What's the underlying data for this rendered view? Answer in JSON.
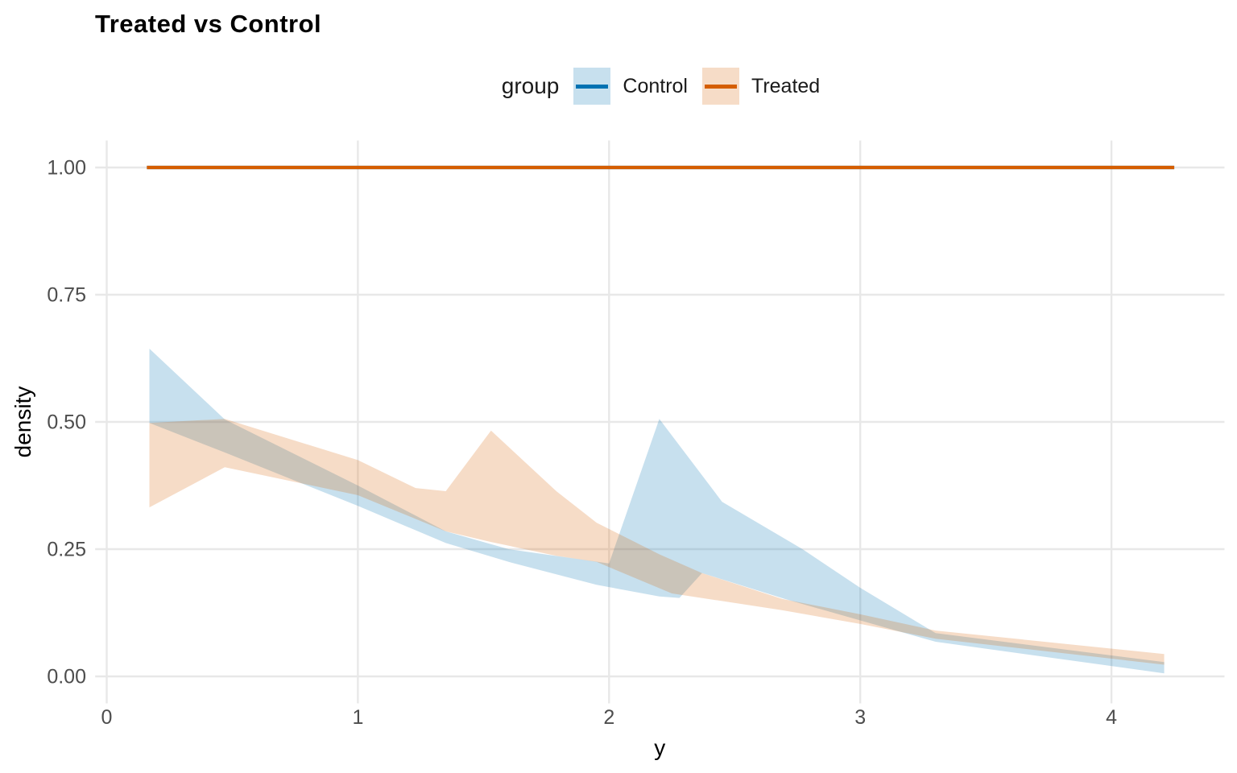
{
  "chart_data": {
    "type": "area",
    "title": "Treated vs Control",
    "xlabel": "y",
    "ylabel": "density",
    "grid": "major-only",
    "panel_background": "#FFFFFF",
    "gridline_color": "#E8E8E8",
    "tick_label_color": "#4D4D4D",
    "legend": {
      "title": "group",
      "position": "top-center"
    },
    "x_ticks": [
      {
        "label": "0",
        "v": 0
      },
      {
        "label": "1",
        "v": 1
      },
      {
        "label": "2",
        "v": 2
      },
      {
        "label": "3",
        "v": 3
      },
      {
        "label": "4",
        "v": 4
      }
    ],
    "y_ticks": [
      {
        "label": "0.00",
        "v": 0
      },
      {
        "label": "0.25",
        "v": 0.25
      },
      {
        "label": "0.50",
        "v": 0.5
      },
      {
        "label": "0.75",
        "v": 0.75
      },
      {
        "label": "1.00",
        "v": 1
      }
    ],
    "xlim": [
      -0.046,
      4.45
    ],
    "ylim": [
      -0.053,
      1.053
    ],
    "series": [
      {
        "name": "Control",
        "line_color": "#0072B2",
        "fill": "rgba(0,114,178,0.22)",
        "line": {
          "y": 1.0,
          "x_start": 0.16,
          "x_end": 4.25
        },
        "band_upper": [
          [
            0.17,
            0.644
          ],
          [
            0.47,
            0.505
          ],
          [
            1.0,
            0.375
          ],
          [
            1.35,
            0.285
          ],
          [
            1.6,
            0.25
          ],
          [
            2.0,
            0.222
          ],
          [
            2.2,
            0.506
          ],
          [
            2.45,
            0.343
          ],
          [
            2.77,
            0.25
          ],
          [
            3.0,
            0.174
          ],
          [
            3.3,
            0.085
          ],
          [
            4.21,
            0.028
          ]
        ],
        "band_lower": [
          [
            0.17,
            0.498
          ],
          [
            0.47,
            0.44
          ],
          [
            1.0,
            0.335
          ],
          [
            1.35,
            0.262
          ],
          [
            1.6,
            0.225
          ],
          [
            1.95,
            0.18
          ],
          [
            2.2,
            0.157
          ],
          [
            2.28,
            0.154
          ],
          [
            2.37,
            0.203
          ],
          [
            2.7,
            0.152
          ],
          [
            3.0,
            0.11
          ],
          [
            3.3,
            0.068
          ],
          [
            4.21,
            0.006
          ]
        ]
      },
      {
        "name": "Treated",
        "line_color": "#D55E00",
        "fill": "rgba(213,94,0,0.22)",
        "line": {
          "y": 1.0,
          "x_start": 0.16,
          "x_end": 4.25
        },
        "band_upper": [
          [
            0.17,
            0.498
          ],
          [
            0.47,
            0.506
          ],
          [
            1.0,
            0.425
          ],
          [
            1.23,
            0.37
          ],
          [
            1.35,
            0.364
          ],
          [
            1.53,
            0.483
          ],
          [
            1.79,
            0.364
          ],
          [
            1.95,
            0.302
          ],
          [
            2.2,
            0.24
          ],
          [
            2.37,
            0.203
          ],
          [
            2.69,
            0.152
          ],
          [
            3.0,
            0.122
          ],
          [
            3.3,
            0.09
          ],
          [
            4.21,
            0.044
          ]
        ],
        "band_lower": [
          [
            0.17,
            0.332
          ],
          [
            0.47,
            0.411
          ],
          [
            1.0,
            0.356
          ],
          [
            1.35,
            0.285
          ],
          [
            1.53,
            0.264
          ],
          [
            1.79,
            0.237
          ],
          [
            1.95,
            0.225
          ],
          [
            2.25,
            0.163
          ],
          [
            2.69,
            0.13
          ],
          [
            3.0,
            0.103
          ],
          [
            3.3,
            0.074
          ],
          [
            4.21,
            0.023
          ]
        ]
      }
    ]
  }
}
